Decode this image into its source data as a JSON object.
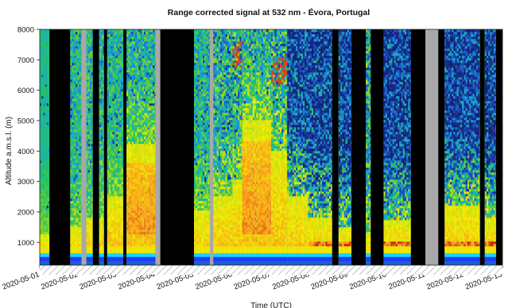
{
  "chart_data": {
    "type": "heatmap",
    "title": "Range corrected signal at 532 nm - Évora, Portugal",
    "xlabel": "Time (UTC)",
    "ylabel": "Altitude a.m.s.l. (m)",
    "ylim": [
      250,
      8000
    ],
    "yticks": [
      1000,
      2000,
      3000,
      4000,
      5000,
      6000,
      7000,
      8000
    ],
    "xlim": [
      "2020-05-01",
      "2020-05-13"
    ],
    "xticks": [
      "2020-05-01",
      "2020-05-02",
      "2020-05-03",
      "2020-05-04",
      "2020-05-05",
      "2020-05-06",
      "2020-05-07",
      "2020-05-08",
      "2020-05-09",
      "2020-05-10",
      "2020-05-11",
      "2020-05-12",
      "2020-05-13"
    ],
    "grid": false,
    "colors": {
      "no_data": "#000000",
      "gap": "#a8a8a8",
      "surface_band": "#1f3aff",
      "near_surface": "#17d6ff",
      "low_signal": "#1e3aa6",
      "mid_signal": "#22c35a",
      "high_signal": "#f5f000",
      "very_high_signal": "#ff8a1e",
      "cloud": "#c01a1a"
    },
    "segments": [
      {
        "start": "2020-05-01 00:00",
        "end": "2020-05-01 06:00",
        "state": "data",
        "aerosol_top_m": 1200,
        "noise_level": 0.15
      },
      {
        "start": "2020-05-01 06:00",
        "end": "2020-05-01 19:00",
        "state": "no_data"
      },
      {
        "start": "2020-05-01 19:00",
        "end": "2020-05-02 02:00",
        "state": "data",
        "aerosol_top_m": 1500,
        "noise_level": 0.35
      },
      {
        "start": "2020-05-02 02:00",
        "end": "2020-05-02 05:00",
        "state": "gap"
      },
      {
        "start": "2020-05-02 05:00",
        "end": "2020-05-02 09:00",
        "state": "data",
        "aerosol_top_m": 1800,
        "noise_level": 0.4
      },
      {
        "start": "2020-05-02 09:00",
        "end": "2020-05-02 13:00",
        "state": "no_data"
      },
      {
        "start": "2020-05-02 13:00",
        "end": "2020-05-02 16:00",
        "state": "data",
        "aerosol_top_m": 1800,
        "noise_level": 0.4
      },
      {
        "start": "2020-05-02 16:00",
        "end": "2020-05-02 18:00",
        "state": "no_data"
      },
      {
        "start": "2020-05-02 18:00",
        "end": "2020-05-03 04:00",
        "state": "data",
        "aerosol_top_m": 2500,
        "noise_level": 0.35
      },
      {
        "start": "2020-05-03 04:00",
        "end": "2020-05-03 06:00",
        "state": "no_data"
      },
      {
        "start": "2020-05-03 06:00",
        "end": "2020-05-04 00:00",
        "state": "data",
        "aerosol_top_m": 4200,
        "noise_level": 0.45,
        "orange_core": true
      },
      {
        "start": "2020-05-04 00:00",
        "end": "2020-05-04 03:00",
        "state": "gap"
      },
      {
        "start": "2020-05-04 03:00",
        "end": "2020-05-05 00:00",
        "state": "no_data"
      },
      {
        "start": "2020-05-05 00:00",
        "end": "2020-05-05 10:00",
        "state": "data",
        "aerosol_top_m": 2000,
        "noise_level": 0.4
      },
      {
        "start": "2020-05-05 10:00",
        "end": "2020-05-05 12:00",
        "state": "gap"
      },
      {
        "start": "2020-05-05 12:00",
        "end": "2020-05-06 00:00",
        "state": "data",
        "aerosol_top_m": 2500,
        "noise_level": 0.55
      },
      {
        "start": "2020-05-06 00:00",
        "end": "2020-05-06 06:00",
        "state": "data",
        "aerosol_top_m": 3000,
        "noise_level": 0.6,
        "cloud_top_m": 7600
      },
      {
        "start": "2020-05-06 06:00",
        "end": "2020-05-07 00:00",
        "state": "data",
        "aerosol_top_m": 5000,
        "noise_level": 0.5,
        "orange_core": true
      },
      {
        "start": "2020-05-07 00:00",
        "end": "2020-05-07 10:00",
        "state": "data",
        "aerosol_top_m": 4000,
        "noise_level": 0.6,
        "cloud_top_m": 7000
      },
      {
        "start": "2020-05-07 10:00",
        "end": "2020-05-07 23:00",
        "state": "data",
        "aerosol_top_m": 2500,
        "noise_level": 0.8,
        "blue_upper": true
      },
      {
        "start": "2020-05-07 23:00",
        "end": "2020-05-08 14:00",
        "state": "data",
        "aerosol_top_m": 1800,
        "noise_level": 0.85,
        "blue_upper": true,
        "red_near_surface": true
      },
      {
        "start": "2020-05-08 14:00",
        "end": "2020-05-08 18:00",
        "state": "no_data"
      },
      {
        "start": "2020-05-08 18:00",
        "end": "2020-05-09 02:00",
        "state": "data",
        "aerosol_top_m": 1500,
        "noise_level": 0.75,
        "blue_upper": true,
        "red_near_surface": true
      },
      {
        "start": "2020-05-09 02:00",
        "end": "2020-05-09 11:00",
        "state": "no_data"
      },
      {
        "start": "2020-05-09 11:00",
        "end": "2020-05-09 14:00",
        "state": "data",
        "aerosol_top_m": 1200,
        "noise_level": 0.6
      },
      {
        "start": "2020-05-09 14:00",
        "end": "2020-05-09 22:00",
        "state": "no_data"
      },
      {
        "start": "2020-05-09 22:00",
        "end": "2020-05-10 15:00",
        "state": "data",
        "aerosol_top_m": 1700,
        "noise_level": 0.75,
        "blue_upper": true,
        "red_near_surface": true
      },
      {
        "start": "2020-05-10 15:00",
        "end": "2020-05-11 00:00",
        "state": "no_data"
      },
      {
        "start": "2020-05-11 00:00",
        "end": "2020-05-11 08:00",
        "state": "gap"
      },
      {
        "start": "2020-05-11 08:00",
        "end": "2020-05-11 12:00",
        "state": "no_data"
      },
      {
        "start": "2020-05-11 12:00",
        "end": "2020-05-12 10:00",
        "state": "data",
        "aerosol_top_m": 2200,
        "noise_level": 0.7,
        "blue_upper": true,
        "red_near_surface": true
      },
      {
        "start": "2020-05-12 10:00",
        "end": "2020-05-12 13:00",
        "state": "no_data"
      },
      {
        "start": "2020-05-12 13:00",
        "end": "2020-05-12 20:00",
        "state": "data",
        "aerosol_top_m": 1800,
        "noise_level": 0.75,
        "blue_upper": true,
        "red_near_surface": true
      },
      {
        "start": "2020-05-12 20:00",
        "end": "2020-05-13 00:00",
        "state": "no_data"
      }
    ]
  }
}
